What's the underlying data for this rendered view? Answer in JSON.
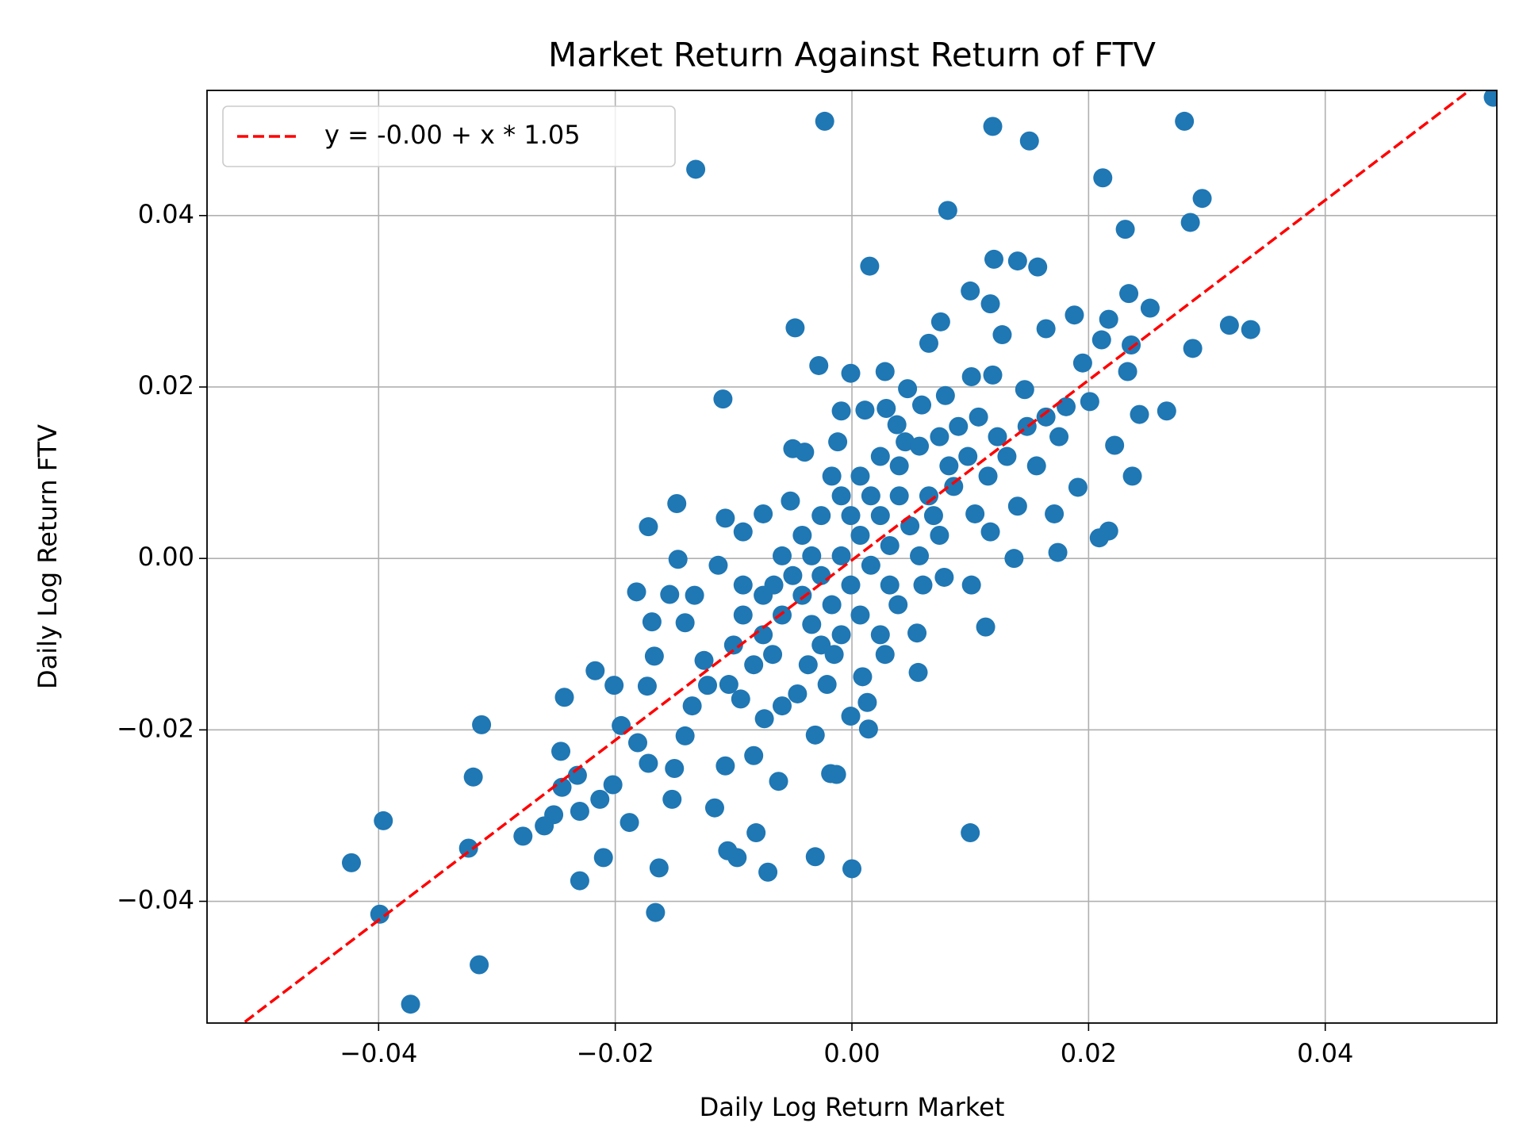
{
  "chart_data": {
    "type": "scatter",
    "title": "Market Return Against Return of FTV",
    "x_label": "Daily Log Return Market",
    "y_label": "Daily Log Return FTV",
    "color": "#1f77b4",
    "x": [
      0.0542,
      -0.0023,
      0.0119,
      0.0281,
      0.015,
      -0.0132,
      0.0212,
      0.0296,
      0.0081,
      0.0286,
      0.0231,
      0.012,
      0.014,
      0.0157,
      0.0015,
      0.01,
      0.0234,
      0.0117,
      0.0252,
      -0.0048,
      0.0319,
      0.0337,
      0.0188,
      0.0217,
      0.0164,
      0.0288,
      0.0236,
      0.0211,
      0.0075,
      0.0065,
      0.0127,
      -0.0028,
      -0.0001,
      0.0028,
      -0.0109,
      0.0195,
      0.0233,
      0.0201,
      0.0243,
      0.0266,
      0.0222,
      0.0237,
      0.0191,
      0.0171,
      0.0217,
      0.0209,
      0.0174,
      0.0137,
      0.0113,
      0.01,
      0.0,
      -0.0031,
      -0.0018,
      -0.0013,
      -0.0031,
      0.0014,
      -0.0001,
      0.0056,
      0.0055,
      0.0028,
      -0.0062,
      -0.0071,
      -0.0081,
      -0.0097,
      -0.0105,
      -0.0116,
      -0.0107,
      -0.0083,
      -0.0152,
      -0.0163,
      -0.0166,
      -0.021,
      -0.0188,
      -0.0213,
      -0.0202,
      -0.023,
      -0.023,
      -0.0232,
      -0.0252,
      -0.026,
      -0.0278,
      -0.0246,
      -0.0245,
      -0.0243,
      -0.0217,
      -0.0201,
      -0.0195,
      -0.0313,
      -0.032,
      -0.0324,
      -0.0315,
      -0.0373,
      -0.0396,
      -0.0399,
      -0.0423,
      -0.0181,
      -0.0172,
      -0.015,
      -0.0141,
      -0.0182,
      -0.0172,
      -0.0148,
      -0.0147,
      -0.0154,
      -0.0169,
      -0.0167,
      -0.0173,
      -0.0141,
      -0.0133,
      -0.0107,
      -0.0113,
      -0.0092,
      -0.0075,
      -0.005,
      -0.004,
      -0.0052,
      -0.0012,
      -0.0009,
      0.0011,
      0.0029,
      0.0038,
      0.0045,
      0.0047,
      0.0059,
      0.0079,
      0.0101,
      0.0119,
      0.0146,
      0.0175,
      0.0156,
      0.014,
      0.0117,
      0.0104,
      0.0086,
      0.0069,
      0.0078,
      0.0101,
      0.006,
      0.0039,
      0.0024,
      0.0009,
      0.0013,
      -0.0015,
      -0.0021,
      -0.0037,
      -0.0046,
      -0.0059,
      -0.0074,
      -0.0094,
      -0.0104,
      -0.0125,
      -0.0122,
      -0.0135,
      -0.0075,
      -0.0059,
      -0.0042,
      -0.0026,
      -0.0009,
      0.0007,
      0.0024,
      0.004,
      0.0057,
      0.0074,
      0.009,
      0.0107,
      0.0123,
      0.0024,
      0.0007,
      -0.0009,
      -0.0026,
      -0.0042,
      -0.0059,
      -0.0075,
      -0.0092,
      -0.01,
      -0.0083,
      -0.0067,
      -0.0034,
      -0.0017,
      -0.0001,
      0.0016,
      0.0032,
      0.0049,
      0.0065,
      0.0082,
      0.0098,
      0.0115,
      0.0131,
      0.0148,
      0.0164,
      0.0181,
      0.0057,
      0.0074,
      0.0007,
      -0.0009,
      -0.0026,
      -0.005,
      -0.0066,
      -0.0092,
      -0.0017,
      -0.0001,
      0.0016,
      0.004,
      0.0032,
      -0.0034
    ],
    "values": [
      0.0538,
      0.051,
      0.0504,
      0.051,
      0.0487,
      0.0454,
      0.0444,
      0.042,
      0.0406,
      0.0392,
      0.0384,
      0.0349,
      0.0347,
      0.034,
      0.0341,
      0.0312,
      0.0309,
      0.0297,
      0.0292,
      0.0269,
      0.0272,
      0.0267,
      0.0284,
      0.0279,
      0.0268,
      0.0245,
      0.0249,
      0.0255,
      0.0276,
      0.0251,
      0.0261,
      0.0225,
      0.0216,
      0.0218,
      0.0186,
      0.0228,
      0.0218,
      0.0183,
      0.0168,
      0.0172,
      0.0132,
      0.0096,
      0.0083,
      0.0052,
      0.0032,
      0.0024,
      0.0007,
      0.0,
      -0.008,
      -0.032,
      -0.0362,
      -0.0348,
      -0.0251,
      -0.0252,
      -0.0206,
      -0.0199,
      -0.0184,
      -0.0133,
      -0.0087,
      -0.0112,
      -0.026,
      -0.0366,
      -0.032,
      -0.0349,
      -0.0341,
      -0.0291,
      -0.0242,
      -0.023,
      -0.0281,
      -0.0361,
      -0.0413,
      -0.0349,
      -0.0308,
      -0.0281,
      -0.0264,
      -0.0376,
      -0.0295,
      -0.0253,
      -0.0299,
      -0.0312,
      -0.0324,
      -0.0225,
      -0.0267,
      -0.0162,
      -0.0131,
      -0.0148,
      -0.0195,
      -0.0194,
      -0.0255,
      -0.0338,
      -0.0474,
      -0.052,
      -0.0306,
      -0.0415,
      -0.0355,
      -0.0215,
      -0.0239,
      -0.0245,
      -0.0207,
      -0.0039,
      0.0037,
      0.0064,
      -0.0001,
      -0.0042,
      -0.0074,
      -0.0114,
      -0.0149,
      -0.0075,
      -0.0043,
      0.0047,
      -0.0008,
      0.0031,
      0.0052,
      0.0128,
      0.0124,
      0.0067,
      0.0136,
      0.0172,
      0.0173,
      0.0175,
      0.0156,
      0.0136,
      0.0198,
      0.0179,
      0.019,
      0.0212,
      0.0214,
      0.0197,
      0.0142,
      0.0108,
      0.0061,
      0.0031,
      0.0052,
      0.0084,
      0.005,
      -0.0022,
      -0.0031,
      -0.0031,
      -0.0054,
      -0.0089,
      -0.0138,
      -0.0168,
      -0.0112,
      -0.0147,
      -0.0124,
      -0.0158,
      -0.0172,
      -0.0187,
      -0.0164,
      -0.0147,
      -0.0119,
      -0.0148,
      -0.0172,
      -0.0043,
      0.0003,
      0.0027,
      0.005,
      0.0073,
      0.0096,
      0.0119,
      0.0108,
      0.0131,
      0.0142,
      0.0154,
      0.0165,
      0.0142,
      0.005,
      0.0027,
      0.0003,
      -0.002,
      -0.0043,
      -0.0066,
      -0.0089,
      -0.0066,
      -0.0101,
      -0.0124,
      -0.0112,
      -0.0077,
      -0.0054,
      -0.0031,
      -0.0008,
      0.0015,
      0.0038,
      0.0073,
      0.0108,
      0.0119,
      0.0096,
      0.0119,
      0.0154,
      0.0165,
      0.0177,
      0.0003,
      0.0027,
      -0.0066,
      -0.0089,
      -0.0101,
      -0.002,
      -0.0031,
      -0.0031,
      0.0096,
      0.005,
      0.0073,
      0.0073,
      -0.0031,
      0.0003
    ],
    "fit": {
      "name": "y = -0.00 + x * 1.05",
      "color": "#ff0000",
      "intercept": -0.0002,
      "slope": 1.05
    },
    "legend": "upper left",
    "grid": true,
    "xlim": [
      -0.0545,
      0.0545
    ],
    "ylim": [
      -0.0542,
      0.0546
    ],
    "xticks": [
      {
        "value": -0.04,
        "label": "−0.04"
      },
      {
        "value": -0.02,
        "label": "−0.02"
      },
      {
        "value": 0,
        "label": "0.00"
      },
      0.02,
      0.04
    ],
    "yticks": [
      {
        "value": -0.04,
        "label": "−0.04"
      },
      {
        "value": -0.02,
        "label": "−0.02"
      },
      {
        "value": 0,
        "label": "0.00"
      },
      0.02,
      0.04
    ]
  }
}
